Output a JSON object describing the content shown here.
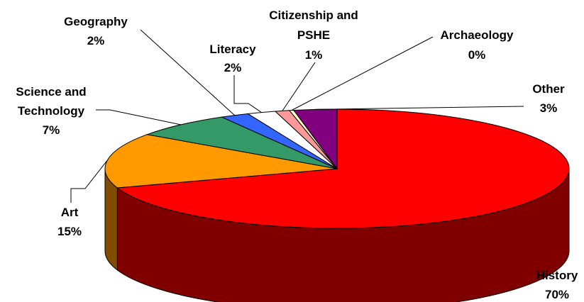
{
  "chart_data": {
    "type": "pie",
    "style": "3d",
    "title": "",
    "slices": [
      {
        "name": "History",
        "pct_label": "70%",
        "value": 70,
        "color": "#ff0000",
        "side_color": "#800000"
      },
      {
        "name": "Art",
        "pct_label": "15%",
        "value": 15,
        "color": "#ff9900",
        "side_color": "#804d00"
      },
      {
        "name": "Science and Technology",
        "pct_label": "7%",
        "value": 7,
        "color": "#339966",
        "side_color": "#1a4d33"
      },
      {
        "name": "Geography",
        "pct_label": "2%",
        "value": 2,
        "color": "#3366ff",
        "side_color": "#1a3380"
      },
      {
        "name": "Literacy",
        "pct_label": "2%",
        "value": 2,
        "color": "#ffffff",
        "side_color": "#808080"
      },
      {
        "name": "Citizenship and PSHE",
        "pct_label": "1%",
        "value": 1,
        "color": "#ff9999",
        "side_color": "#804d4d"
      },
      {
        "name": "Archaeology",
        "pct_label": "0%",
        "value": 0.3,
        "color": "#ffffcc",
        "side_color": "#808066"
      },
      {
        "name": "Other",
        "pct_label": "3%",
        "value": 3,
        "color": "#800080",
        "side_color": "#400040"
      }
    ],
    "legend": "none",
    "data_labels": "outside-with-leader-lines"
  }
}
